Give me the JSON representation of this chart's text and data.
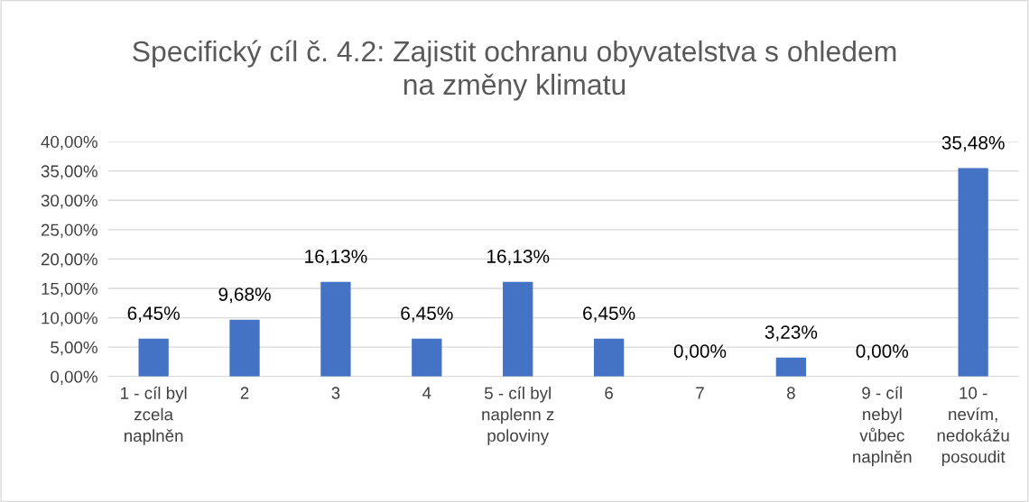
{
  "chart_data": {
    "type": "bar",
    "title": "Specifický cíl č. 4.2: Zajistit ochranu obyvatelstva s ohledem\nna změny klimatu",
    "categories": [
      "1 - cíl byl\nzcela\nnaplněn",
      "2",
      "3",
      "4",
      "5 - cíl byl\nnaplenn z\npoloviny",
      "6",
      "7",
      "8",
      "9 - cíl\nnebyl\nvůbec\nnaplněn",
      "10 -\nnevím,\nnedokážu\nposoudit"
    ],
    "values": [
      6.45,
      9.68,
      16.13,
      6.45,
      16.13,
      6.45,
      0,
      3.23,
      0,
      35.48
    ],
    "value_labels": [
      "6,45%",
      "9,68%",
      "16,13%",
      "6,45%",
      "16,13%",
      "6,45%",
      "0,00%",
      "3,23%",
      "0,00%",
      "35,48%"
    ],
    "color": "#4472c4",
    "ylim": [
      0,
      40
    ],
    "yticks": [
      {
        "value": 0,
        "label": "0,00%"
      },
      {
        "value": 5,
        "label": "5,00%"
      },
      {
        "value": 10,
        "label": "10,00%"
      },
      {
        "value": 15,
        "label": "15,00%"
      },
      {
        "value": 20,
        "label": "20,00%"
      },
      {
        "value": 25,
        "label": "25,00%"
      },
      {
        "value": 30,
        "label": "30,00%"
      },
      {
        "value": 35,
        "label": "35,00%"
      },
      {
        "value": 40,
        "label": "40,00%"
      }
    ],
    "grid": "y"
  }
}
